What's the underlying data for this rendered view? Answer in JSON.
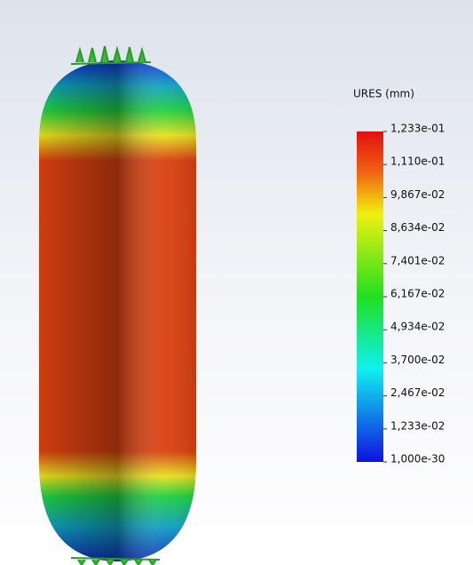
{
  "legend": {
    "title": "URES (mm)",
    "labels": [
      "1,233e-01",
      "1,110e-01",
      "9,867e-02",
      "8,634e-02",
      "7,401e-02",
      "6,167e-02",
      "4,934e-02",
      "3,700e-02",
      "2,467e-02",
      "1,233e-02",
      "1,000e-30"
    ]
  }
}
